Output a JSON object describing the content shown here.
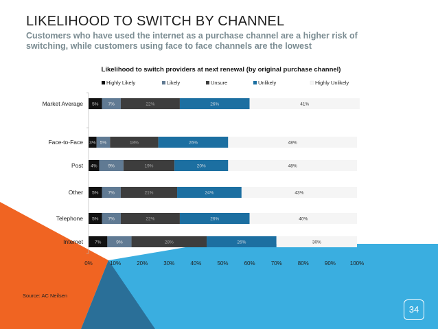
{
  "slide": {
    "title": "LIKELIHOOD TO SWITCH BY CHANNEL",
    "subtitle": "Customers who have used the internet as a purchase channel are a higher risk of switching, while customers using face to face channels are the lowest",
    "source": "Source: AC Neilsen",
    "page_number": "34",
    "colors": {
      "blue_band": "#3aaee0",
      "orange_band": "#f06422",
      "dark_blue": "#1f4e7a"
    }
  },
  "chart_data": {
    "type": "bar",
    "orientation": "horizontal",
    "stacked": true,
    "title": "Likelihood to switch providers at next renewal (by original purchase channel)",
    "categories": [
      "Market Average",
      "Face-to-Face",
      "Post",
      "Other",
      "Telephone",
      "Internet"
    ],
    "series": [
      {
        "name": "Highly Likely",
        "color": "#111111",
        "text_color": "#cccccc",
        "values": [
          5,
          3,
          4,
          5,
          5,
          7
        ],
        "labels": [
          "5%",
          "3%",
          "4%",
          "5%",
          "5%",
          "7%"
        ]
      },
      {
        "name": "Likely",
        "color": "#607a93",
        "text_color": "#e8e8e8",
        "values": [
          7,
          5,
          9,
          7,
          7,
          9
        ],
        "labels": [
          "7%",
          "5%",
          "9%",
          "7%",
          "7%",
          "9%"
        ]
      },
      {
        "name": "Unsure",
        "color": "#3d3d3d",
        "text_color": "#aaaaaa",
        "values": [
          22,
          18,
          19,
          21,
          22,
          28
        ],
        "labels": [
          "22%",
          "18%",
          "19%",
          "21%",
          "22%",
          "28%"
        ]
      },
      {
        "name": "Unlikely",
        "color": "#1c6fa1",
        "text_color": "#d0d8e0",
        "values": [
          26,
          26,
          20,
          24,
          26,
          26
        ],
        "labels": [
          "26%",
          "26%",
          "20%",
          "24%",
          "26%",
          "26%"
        ]
      },
      {
        "name": "Highly Unlikely",
        "color": "#f5f5f5",
        "text_color": "#333333",
        "values": [
          41,
          48,
          48,
          43,
          40,
          30
        ],
        "labels": [
          "41%",
          "48%",
          "48%",
          "43%",
          "40%",
          "30%"
        ]
      }
    ],
    "xlim": [
      0,
      100
    ],
    "x_ticks": [
      "0%",
      "10%",
      "20%",
      "30%",
      "40%",
      "50%",
      "60%",
      "70%",
      "80%",
      "90%",
      "100%"
    ],
    "legend_position": "top",
    "grid": false
  }
}
